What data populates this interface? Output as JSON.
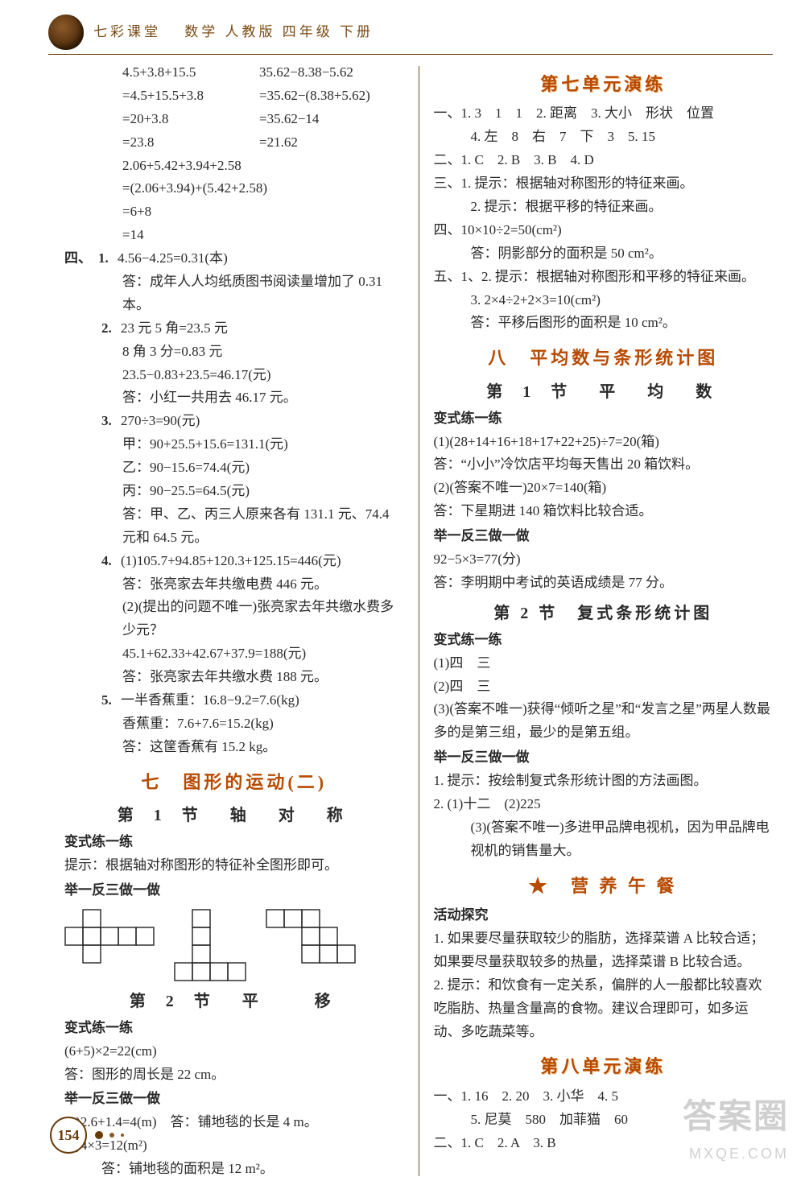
{
  "header": {
    "series": "七彩课堂",
    "subject": "数学",
    "edition": "人教版",
    "grade": "四年级",
    "term": "下册"
  },
  "page_number": "154",
  "watermark": {
    "big": "答案圈",
    "small": "MXQE.COM"
  },
  "left": {
    "eq_block1": {
      "colA": [
        "4.5+3.8+15.5",
        "=4.5+15.5+3.8",
        "=20+3.8",
        "=23.8"
      ],
      "colB": [
        "35.62−8.38−5.62",
        "=35.62−(8.38+5.62)",
        "=35.62−14",
        "=21.62"
      ]
    },
    "eq_block2": [
      "2.06+5.42+3.94+2.58",
      "=(2.06+3.94)+(5.42+2.58)",
      "=6+8",
      "=14"
    ],
    "sec4_label": "四、",
    "q1": {
      "n": "1.",
      "l1": "4.56−4.25=0.31(本)",
      "l2": "答：成年人人均纸质图书阅读量增加了 0.31 本。"
    },
    "q2": {
      "n": "2.",
      "l1": "23 元 5 角=23.5 元",
      "l2": "8 角 3 分=0.83 元",
      "l3": "23.5−0.83+23.5=46.17(元)",
      "l4": "答：小红一共用去 46.17 元。"
    },
    "q3": {
      "n": "3.",
      "l1": "270÷3=90(元)",
      "l2": "甲：90+25.5+15.6=131.1(元)",
      "l3": "乙：90−15.6=74.4(元)",
      "l4": "丙：90−25.5=64.5(元)",
      "l5": "答：甲、乙、丙三人原来各有 131.1 元、74.4 元和 64.5 元。"
    },
    "q4": {
      "n": "4.",
      "l1": "(1)105.7+94.85+120.3+125.15=446(元)",
      "l2": "答：张亮家去年共缴电费 446 元。",
      "l3": "(2)(提出的问题不唯一)张亮家去年共缴水费多少元？",
      "l4": "45.1+62.33+42.67+37.9=188(元)",
      "l5": "答：张亮家去年共缴水费 188 元。"
    },
    "q5": {
      "n": "5.",
      "l1": "一半香蕉重：16.8−9.2=7.6(kg)",
      "l2": "香蕉重：7.6+7.6=15.2(kg)",
      "l3": "答：这筐香蕉有 15.2 kg。"
    },
    "unit7_title": "七　图形的运动(二)",
    "sec1_title": "第 1 节　轴　对　称",
    "bsl": "变式练一练",
    "bsl_text": "提示：根据轴对称图形的特征补全图形即可。",
    "jyf": "举一反三做一做",
    "sec2_title": "第 2 节　平　　移",
    "bsl2": "变式练一练",
    "bsl2_l1": "(6+5)×2=22(cm)",
    "bsl2_l2": "答：图形的周长是 22 cm。",
    "jyf2": "举一反三做一做",
    "jyf2_l1": "(1)2.6+1.4=4(m)　答：铺地毯的长是 4 m。",
    "jyf2_l2": "(2)4×3=12(m²)",
    "jyf2_l3": "答：铺地毯的面积是 12 m²。"
  },
  "right": {
    "unit7_test": "第七单元演练",
    "t1": "一、1. 3　1　1　2. 距离　3. 大小　形状　位置",
    "t1b": "4. 左　8　右　7　下　3　5. 15",
    "t2": "二、1. C　2. B　3. B　4. D",
    "t3a": "三、1. 提示：根据轴对称图形的特征来画。",
    "t3b": "2. 提示：根据平移的特征来画。",
    "t4a": "四、10×10÷2=50(cm²)",
    "t4b": "答：阴影部分的面积是 50 cm²。",
    "t5a": "五、1、2. 提示：根据轴对称图形和平移的特征来画。",
    "t5b": "3. 2×4÷2+2×3=10(cm²)",
    "t5c": "答：平移后图形的面积是 10 cm²。",
    "unit8_title": "八　平均数与条形统计图",
    "sec1_title": "第 1 节　平　均　数",
    "bsl": "变式练一练",
    "bsl_l1": "(1)(28+14+16+18+17+22+25)÷7=20(箱)",
    "bsl_l2": "答：“小小”冷饮店平均每天售出 20 箱饮料。",
    "bsl_l3": "(2)(答案不唯一)20×7=140(箱)",
    "bsl_l4": "答：下星期进 140 箱饮料比较合适。",
    "jyf": "举一反三做一做",
    "jyf_l1": "92−5×3=77(分)",
    "jyf_l2": "答：李明期中考试的英语成绩是 77 分。",
    "sec2_title": "第 2 节　复式条形统计图",
    "bsl2": "变式练一练",
    "bsl2_l1": "(1)四　三",
    "bsl2_l2": "(2)四　三",
    "bsl2_l3": "(3)(答案不唯一)获得“倾听之星”和“发言之星”两星人数最多的是第三组，最少的是第五组。",
    "jyf2": "举一反三做一做",
    "jyf2_l1": "1. 提示：按绘制复式条形统计图的方法画图。",
    "jyf2_l2": "2. (1)十二　(2)225",
    "jyf2_l3": "(3)(答案不唯一)多进甲品牌电视机，因为甲品牌电视机的销售量大。",
    "lunch_title": "★　营 养 午 餐",
    "lunch_head": "活动探究",
    "lunch_l1": "1. 如果要尽量获取较少的脂肪，选择菜谱 A 比较合适；如果要尽量获取较多的热量，选择菜谱 B 比较合适。",
    "lunch_l2": "2. 提示：和饮食有一定关系，偏胖的人一般都比较喜欢吃脂肪、热量含量高的食物。建议合理即可，如多运动、多吃蔬菜等。",
    "unit8_test": "第八单元演练",
    "u8_l1": "一、1. 16　2. 20　3. 小华　4. 5",
    "u8_l2": "5. 尼莫　580　加菲猫　60",
    "u8_l3": "二、1. C　2. A　3. B"
  },
  "figures": {
    "cell": 22,
    "stroke": "#222222",
    "stroke_width": 1.4,
    "shapes": [
      {
        "w": 5,
        "h": 3,
        "cells": [
          [
            0,
            1
          ],
          [
            1,
            0
          ],
          [
            1,
            1
          ],
          [
            1,
            2
          ],
          [
            2,
            1
          ],
          [
            3,
            1
          ],
          [
            4,
            1
          ]
        ]
      },
      {
        "w": 4,
        "h": 4,
        "cells": [
          [
            0,
            3
          ],
          [
            1,
            0
          ],
          [
            1,
            1
          ],
          [
            1,
            2
          ],
          [
            1,
            3
          ],
          [
            2,
            3
          ],
          [
            3,
            3
          ]
        ]
      },
      {
        "w": 5,
        "h": 3,
        "cells": [
          [
            0,
            0
          ],
          [
            1,
            0
          ],
          [
            2,
            0
          ],
          [
            2,
            1
          ],
          [
            2,
            2
          ],
          [
            3,
            2
          ],
          [
            4,
            2
          ],
          [
            3,
            1
          ]
        ]
      }
    ]
  }
}
